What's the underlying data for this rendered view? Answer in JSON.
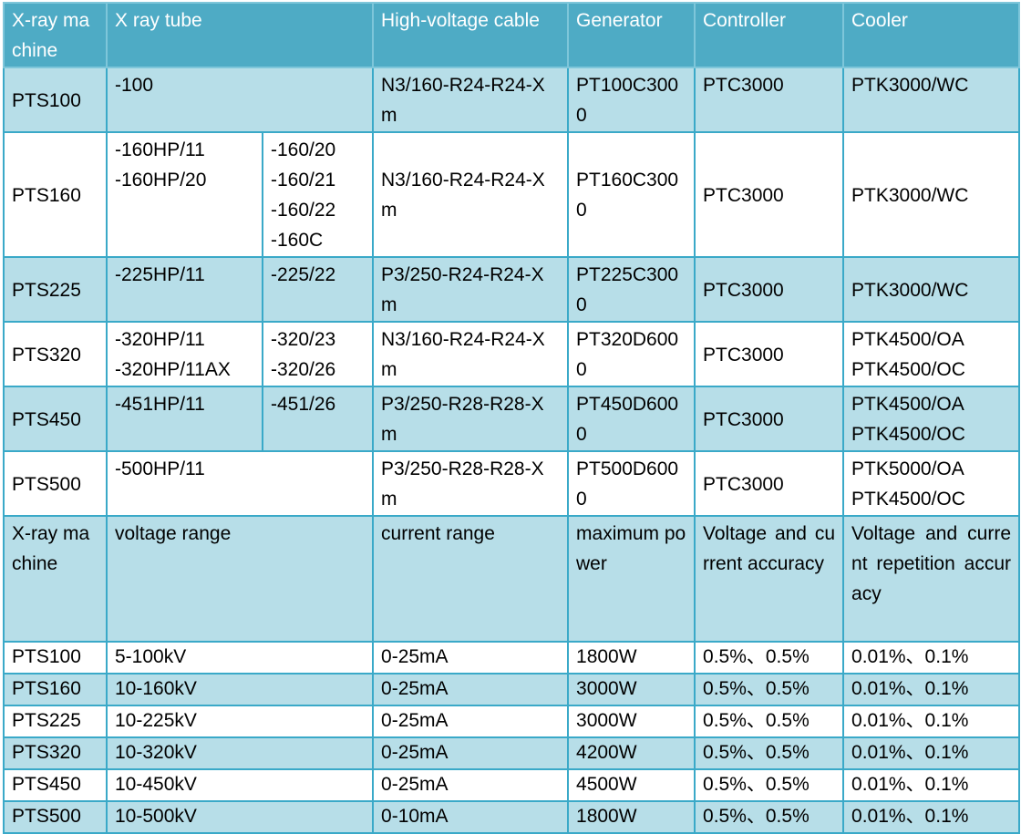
{
  "header": {
    "machine": "X-ray machine",
    "tube": "X ray tube",
    "cable": "High-voltage cable",
    "generator": "Generator",
    "controller": "Controller",
    "cooler": "Cooler"
  },
  "rows": [
    {
      "machine": "PTS100",
      "tube_a": [
        "-100"
      ],
      "tube_b": [],
      "cable": "N3/160-R24-R24-Xm",
      "generator": "PT100C3000",
      "controller": "PTC3000",
      "cooler": [
        "PTK3000/WC"
      ]
    },
    {
      "machine": "PTS160",
      "tube_a": [
        "-160HP/11",
        "-160HP/20"
      ],
      "tube_b": [
        "-160/20",
        "-160/21",
        "-160/22",
        "-160C"
      ],
      "cable": "N3/160-R24-R24-Xm",
      "generator": "PT160C3000",
      "controller": "PTC3000",
      "cooler": [
        "PTK3000/WC"
      ]
    },
    {
      "machine": "PTS225",
      "tube_a": [
        "-225HP/11"
      ],
      "tube_b": [
        "-225/22"
      ],
      "cable": "P3/250-R24-R24-Xm",
      "generator": "PT225C3000",
      "controller": "PTC3000",
      "cooler": [
        "PTK3000/WC"
      ]
    },
    {
      "machine": "PTS320",
      "tube_a": [
        "-320HP/11",
        "-320HP/11AX"
      ],
      "tube_b": [
        "-320/23",
        "-320/26"
      ],
      "cable": "N3/160-R24-R24-Xm",
      "generator": "PT320D6000",
      "controller": "PTC3000",
      "cooler": [
        "PTK4500/OA",
        "PTK4500/OC"
      ]
    },
    {
      "machine": "PTS450",
      "tube_a": [
        "-451HP/11"
      ],
      "tube_b": [
        "-451/26"
      ],
      "cable": "P3/250-R28-R28-Xm",
      "generator": "PT450D6000",
      "controller": "PTC3000",
      "cooler": [
        "PTK4500/OA",
        "PTK4500/OC"
      ]
    },
    {
      "machine": "PTS500",
      "tube_a": [
        "-500HP/11"
      ],
      "tube_b": [],
      "cable": "P3/250-R28-R28-Xm",
      "generator": "PT500D6000",
      "controller": "PTC3000",
      "cooler": [
        "PTK5000/OA",
        "PTK4500/OC"
      ]
    }
  ],
  "spec_header": {
    "machine": "X-ray machine",
    "voltage": "voltage range",
    "current": "current range",
    "power": "maximum power",
    "accuracy": "Voltage and current accuracy",
    "repetition": "Voltage and current repetition accuracy"
  },
  "spec_rows": [
    {
      "machine": "PTS100",
      "voltage": "5-100kV",
      "current": "0-25mA",
      "power": "1800W",
      "accuracy": "0.5%、0.5%",
      "repetition": "0.01%、0.1%"
    },
    {
      "machine": "PTS160",
      "voltage": "10-160kV",
      "current": "0-25mA",
      "power": "3000W",
      "accuracy": "0.5%、0.5%",
      "repetition": "0.01%、0.1%"
    },
    {
      "machine": "PTS225",
      "voltage": "10-225kV",
      "current": "0-25mA",
      "power": "3000W",
      "accuracy": "0.5%、0.5%",
      "repetition": "0.01%、0.1%"
    },
    {
      "machine": "PTS320",
      "voltage": "10-320kV",
      "current": "0-25mA",
      "power": "4200W",
      "accuracy": "0.5%、0.5%",
      "repetition": "0.01%、0.1%"
    },
    {
      "machine": "PTS450",
      "voltage": "10-450kV",
      "current": "0-25mA",
      "power": "4500W",
      "accuracy": "0.5%、0.5%",
      "repetition": "0.01%、0.1%"
    },
    {
      "machine": "PTS500",
      "voltage": "10-500kV",
      "current": "0-10mA",
      "power": "1800W",
      "accuracy": "0.5%、0.5%",
      "repetition": "0.01%、0.1%"
    }
  ],
  "colors": {
    "header_bg": "#4eabc5",
    "header_text": "#ffffff",
    "row_blue": "#b7dee8",
    "row_white": "#ffffff",
    "border": "#3aa9c8"
  }
}
